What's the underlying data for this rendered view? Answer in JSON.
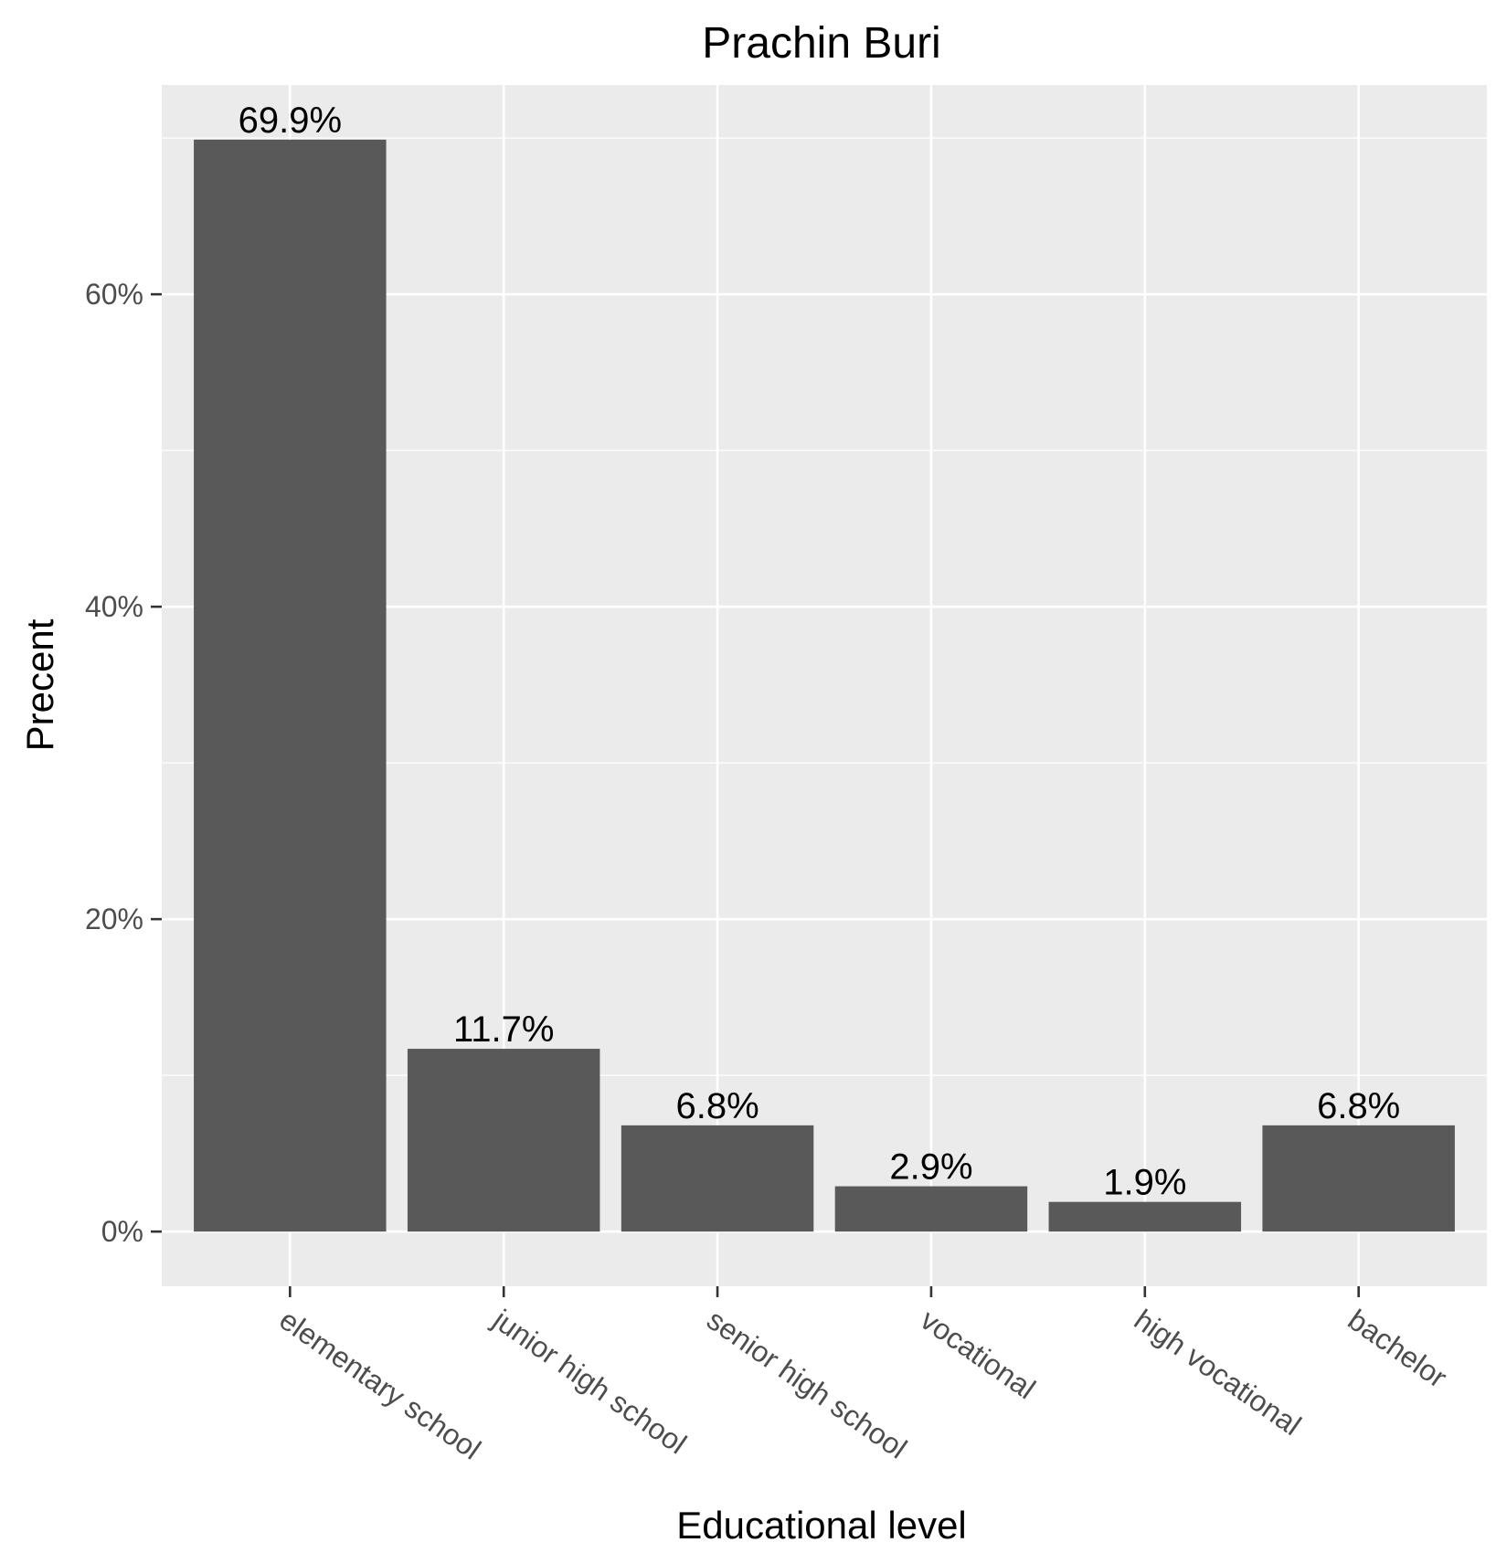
{
  "chart_data": {
    "type": "bar",
    "title": "Prachin Buri",
    "xlabel": "Educational level",
    "ylabel": "Precent",
    "categories": [
      "elementary school",
      "junior high school",
      "senior high school",
      "vocational",
      "high vocational",
      "bachelor"
    ],
    "values": [
      69.9,
      11.7,
      6.8,
      2.9,
      1.9,
      6.8
    ],
    "value_labels": [
      "69.9%",
      "11.7%",
      "6.8%",
      "2.9%",
      "1.9%",
      "6.8%"
    ],
    "yticks": [
      0,
      20,
      40,
      60
    ],
    "ytick_labels": [
      "0%",
      "20%",
      "40%",
      "60%"
    ],
    "ylim": [
      -3.5,
      73.4
    ],
    "grid": true,
    "legend": "none",
    "colors": {
      "bar": "#595959",
      "panel": "#ebebeb",
      "grid": "#ffffff",
      "tick_text": "#4d4d4d",
      "tick_mark": "#333333"
    }
  }
}
